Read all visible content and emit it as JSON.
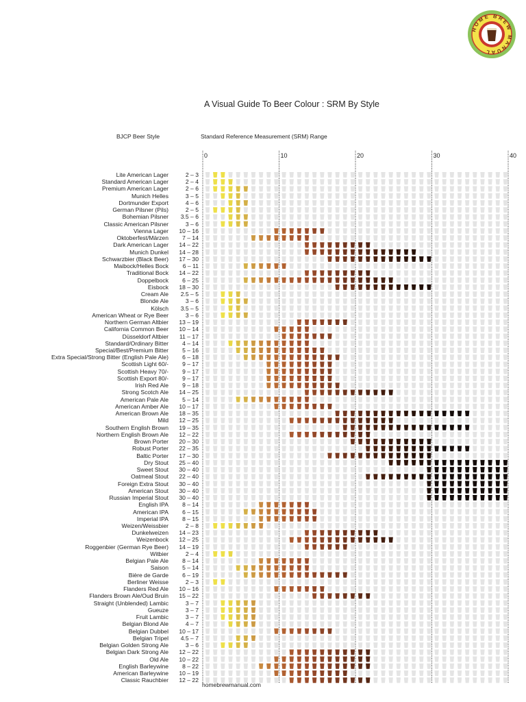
{
  "logo_text": "HOME BREW MANUAL",
  "title": "A Visual Guide To Beer Colour : SRM By Style",
  "footer": "homebrewmanual.com",
  "chart_data": {
    "type": "table",
    "title": "A Visual Guide To Beer Colour : SRM By Style",
    "row_header": "BJCP Beer Style",
    "range_header": "Standard Reference Measurement (SRM) Range",
    "xlim": [
      0,
      40
    ],
    "x_ticks": [
      "0",
      "10",
      "20",
      "30",
      "40"
    ],
    "grid": "dotted vertical lines at ticks",
    "empty_glass_color": "#e4e4e4",
    "srm_colors": {
      "2": "#eee04a",
      "3": "#eee04a",
      "4": "#e8d848",
      "5": "#dcc048",
      "6": "#d4b048",
      "7": "#cc9a44",
      "8": "#c88a40",
      "9": "#c07a3a",
      "10": "#b96c36",
      "11": "#b26232",
      "12": "#aa5a30",
      "13": "#a4532e",
      "14": "#9e4e2c",
      "15": "#944829",
      "16": "#8c4426",
      "17": "#844024",
      "18": "#7c3b22",
      "19": "#72361f",
      "20": "#6a311c",
      "21": "#5e2b18",
      "22": "#542614",
      "23": "#4a2110",
      "24": "#421d0e",
      "25": "#3a1a0d",
      "26": "#32160b",
      "27": "#2c140a",
      "28": "#271209",
      "29": "#221008",
      "30": "#1e0e08",
      "31": "#140c0a"
    },
    "styles": [
      {
        "name": "Lite American Lager",
        "range": "2 – 3",
        "min": 2,
        "max": 3
      },
      {
        "name": "Standard American Lager",
        "range": "2 – 4",
        "min": 2,
        "max": 4
      },
      {
        "name": "Premium American Lager",
        "range": "2 – 6",
        "min": 2,
        "max": 6
      },
      {
        "name": "Munich Helles",
        "range": "3 – 5",
        "min": 3,
        "max": 5
      },
      {
        "name": "Dortmunder Export",
        "range": "4 – 6",
        "min": 4,
        "max": 6
      },
      {
        "name": "German Pilsner (Pils)",
        "range": "2 – 5",
        "min": 2,
        "max": 5
      },
      {
        "name": "Bohemian Pilsner",
        "range": "3.5 – 6",
        "min": 3.5,
        "max": 6
      },
      {
        "name": "Classic American Pilsner",
        "range": "3 – 6",
        "min": 3,
        "max": 6
      },
      {
        "name": "Vienna Lager",
        "range": "10 – 16",
        "min": 10,
        "max": 16
      },
      {
        "name": "Oktoberfest/Märzen",
        "range": "7 – 14",
        "min": 7,
        "max": 14
      },
      {
        "name": "Dark American Lager",
        "range": "14 – 22",
        "min": 14,
        "max": 22
      },
      {
        "name": "Munich Dunkel",
        "range": "14 – 28",
        "min": 14,
        "max": 28
      },
      {
        "name": "Schwarzbier (Black Beer)",
        "range": "17 – 30",
        "min": 17,
        "max": 30
      },
      {
        "name": "Maibock/Helles Bock",
        "range": "6 – 11",
        "min": 6,
        "max": 11
      },
      {
        "name": "Traditional Bock",
        "range": "14 – 22",
        "min": 14,
        "max": 22
      },
      {
        "name": "Doppelbock",
        "range": "6 – 25",
        "min": 6,
        "max": 25
      },
      {
        "name": "Eisbock",
        "range": "18 – 30",
        "min": 18,
        "max": 30
      },
      {
        "name": "Cream Ale",
        "range": "2.5 – 5",
        "min": 2.5,
        "max": 5
      },
      {
        "name": "Blonde Ale",
        "range": "3 – 6",
        "min": 3,
        "max": 6
      },
      {
        "name": "Kölsch",
        "range": "3.5 – 5",
        "min": 3.5,
        "max": 5
      },
      {
        "name": "American Wheat or Rye Beer",
        "range": "3 – 6",
        "min": 3,
        "max": 6
      },
      {
        "name": "Northern German Altbier",
        "range": "13 – 19",
        "min": 13,
        "max": 19
      },
      {
        "name": "California Common Beer",
        "range": "10 – 14",
        "min": 10,
        "max": 14
      },
      {
        "name": "Düsseldorf Altbier",
        "range": "11 – 17",
        "min": 11,
        "max": 17
      },
      {
        "name": "Standard/Ordinary Bitter",
        "range": "4 – 14",
        "min": 4,
        "max": 14
      },
      {
        "name": "Special/Best/Premium Bitter",
        "range": "5 – 16",
        "min": 5,
        "max": 16
      },
      {
        "name": "Extra Special/Strong Bitter (English Pale Ale)",
        "range": "6 – 18",
        "min": 6,
        "max": 18
      },
      {
        "name": "Scottish Light 60/-",
        "range": "9 – 17",
        "min": 9,
        "max": 17
      },
      {
        "name": "Scottish Heavy 70/-",
        "range": "9 – 17",
        "min": 9,
        "max": 17
      },
      {
        "name": "Scottish Export 80/-",
        "range": "9 – 17",
        "min": 9,
        "max": 17
      },
      {
        "name": "Irish Red Ale",
        "range": "9 – 18",
        "min": 9,
        "max": 18
      },
      {
        "name": "Strong Scotch Ale",
        "range": "14 – 25",
        "min": 14,
        "max": 25
      },
      {
        "name": "American Pale Ale",
        "range": "5 – 14",
        "min": 5,
        "max": 14
      },
      {
        "name": "American Amber Ale",
        "range": "10 – 17",
        "min": 10,
        "max": 17
      },
      {
        "name": "American Brown Ale",
        "range": "18 – 35",
        "min": 18,
        "max": 35
      },
      {
        "name": "Mild",
        "range": "12 – 25",
        "min": 12,
        "max": 25
      },
      {
        "name": "Southern English Brown",
        "range": "19 – 35",
        "min": 19,
        "max": 35
      },
      {
        "name": "Northern English Brown Ale",
        "range": "12 – 22",
        "min": 12,
        "max": 22
      },
      {
        "name": "Brown Porter",
        "range": "20 – 30",
        "min": 20,
        "max": 30
      },
      {
        "name": "Robust Porter",
        "range": "22 – 35",
        "min": 22,
        "max": 35
      },
      {
        "name": "Baltic Porter",
        "range": "17 – 30",
        "min": 17,
        "max": 30
      },
      {
        "name": "Dry Stout",
        "range": "25 – 40",
        "min": 25,
        "max": 40
      },
      {
        "name": "Sweet Stout",
        "range": "30 – 40",
        "min": 30,
        "max": 40
      },
      {
        "name": "Oatmeal Stout",
        "range": "22 – 40",
        "min": 22,
        "max": 40
      },
      {
        "name": "Foreign Extra Stout",
        "range": "30 – 40",
        "min": 30,
        "max": 40
      },
      {
        "name": "American Stout",
        "range": "30 – 40",
        "min": 30,
        "max": 40
      },
      {
        "name": "Russian Imperial Stout",
        "range": "30 – 40",
        "min": 30,
        "max": 40
      },
      {
        "name": "English IPA",
        "range": "8 – 14",
        "min": 8,
        "max": 14
      },
      {
        "name": "American IPA",
        "range": "6 – 15",
        "min": 6,
        "max": 15
      },
      {
        "name": "Imperial IPA",
        "range": "8 – 15",
        "min": 8,
        "max": 15
      },
      {
        "name": "Weizen/Weissbier",
        "range": "2 – 8",
        "min": 2,
        "max": 8
      },
      {
        "name": "Dunkelweizen",
        "range": "14 – 23",
        "min": 14,
        "max": 23
      },
      {
        "name": "Weizenbock",
        "range": "12 – 25",
        "min": 12,
        "max": 25
      },
      {
        "name": "Roggenbier (German Rye Beer)",
        "range": "14 – 19",
        "min": 14,
        "max": 19
      },
      {
        "name": "Witbier",
        "range": "2 – 4",
        "min": 2,
        "max": 4
      },
      {
        "name": "Belgian Pale Ale",
        "range": "8 – 14",
        "min": 8,
        "max": 14
      },
      {
        "name": "Saison",
        "range": "5 – 14",
        "min": 5,
        "max": 14
      },
      {
        "name": "Bière de Garde",
        "range": "6 – 19",
        "min": 6,
        "max": 19
      },
      {
        "name": "Berliner Weisse",
        "range": "2 – 3",
        "min": 2,
        "max": 3
      },
      {
        "name": "Flanders Red Ale",
        "range": "10 – 16",
        "min": 10,
        "max": 16
      },
      {
        "name": "Flanders Brown Ale/Oud Bruin",
        "range": "15 – 22",
        "min": 15,
        "max": 22
      },
      {
        "name": "Straight (Unblended) Lambic",
        "range": "3 – 7",
        "min": 3,
        "max": 7
      },
      {
        "name": "Gueuze",
        "range": "3 – 7",
        "min": 3,
        "max": 7
      },
      {
        "name": "Fruit Lambic",
        "range": "3 – 7",
        "min": 3,
        "max": 7
      },
      {
        "name": "Belgian Blond Ale",
        "range": "4 – 7",
        "min": 4,
        "max": 7
      },
      {
        "name": "Belgian Dubbel",
        "range": "10 – 17",
        "min": 10,
        "max": 17
      },
      {
        "name": "Belgian Tripel",
        "range": "4.5 – 7",
        "min": 4.5,
        "max": 7
      },
      {
        "name": "Belgian Golden Strong Ale",
        "range": "3 – 6",
        "min": 3,
        "max": 6
      },
      {
        "name": "Belgian Dark Strong Ale",
        "range": "12 – 22",
        "min": 12,
        "max": 22
      },
      {
        "name": "Old Ale",
        "range": "10 – 22",
        "min": 10,
        "max": 22
      },
      {
        "name": "English Barleywine",
        "range": "8 – 22",
        "min": 8,
        "max": 22
      },
      {
        "name": "American Barleywine",
        "range": "10 – 19",
        "min": 10,
        "max": 19
      },
      {
        "name": "Classic Rauchbier",
        "range": "12 – 22",
        "min": 12,
        "max": 22
      }
    ]
  }
}
